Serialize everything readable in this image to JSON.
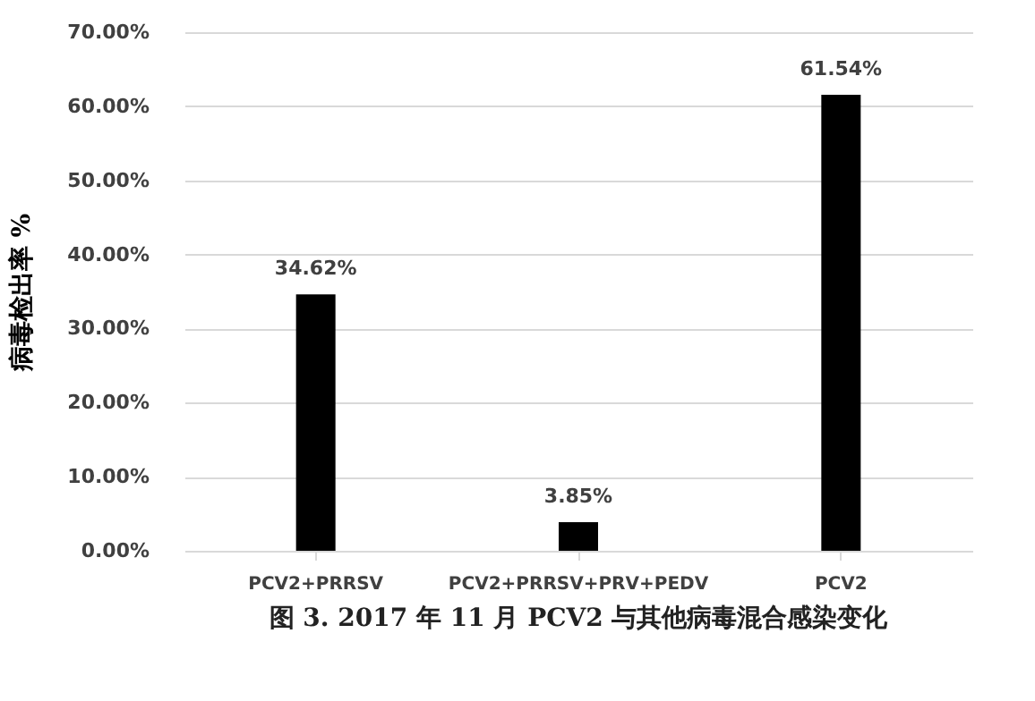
{
  "chart_data": {
    "type": "bar",
    "ylabel": "病毒检出率 %",
    "categories": [
      "PCV2+PRRSV",
      "PCV2+PRRSV+PRV+PEDV",
      "PCV2"
    ],
    "values": [
      34.62,
      3.85,
      61.54
    ],
    "color": "#000000",
    "value_labels": [
      "34.62%",
      "3.85%",
      "61.54%"
    ],
    "ylim": [
      0,
      70
    ],
    "yticks": [
      {
        "value": 0,
        "label": "0.00%"
      },
      {
        "value": 10,
        "label": "10.00%"
      },
      {
        "value": 20,
        "label": "20.00%"
      },
      {
        "value": 30,
        "label": "30.00%"
      },
      {
        "value": 40,
        "label": "40.00%"
      },
      {
        "value": 50,
        "label": "50.00%"
      },
      {
        "value": 60,
        "label": "60.00%"
      },
      {
        "value": 70,
        "label": "70.00%"
      }
    ],
    "grid": "y",
    "annotations": [
      "图 3. 2017 年 11 月 PCV2 与其他病毒混合感染变化"
    ]
  }
}
